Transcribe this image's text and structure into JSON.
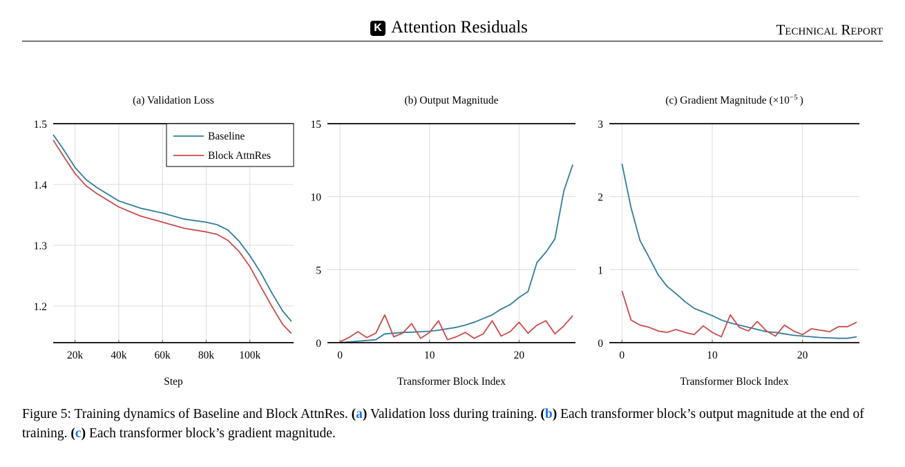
{
  "header": {
    "logo_letter": "K",
    "title": "Attention Residuals",
    "right": "Technical Report"
  },
  "colors": {
    "baseline": "#2e7c9c",
    "block_attnres": "#c94a4a"
  },
  "caption": {
    "prefix": "Figure 5: Training dynamics of Baseline and Block AttnRes. ",
    "a_ref": "a",
    "a_text": " Validation loss during training. ",
    "b_ref": "b",
    "b_text": " Each transformer block’s output magnitude at the end of training. ",
    "c_ref": "c",
    "c_text": " Each transformer block’s gradient magnitude."
  },
  "chart_data": [
    {
      "type": "line",
      "title": "(a) Validation Loss",
      "xlabel": "Step",
      "ylabel": "",
      "xlim": [
        10000,
        120000
      ],
      "ylim": [
        1.14,
        1.5
      ],
      "xticks": [
        20000,
        40000,
        60000,
        80000,
        100000
      ],
      "xtick_labels": [
        "20k",
        "40k",
        "60k",
        "80k",
        "100k"
      ],
      "yticks": [
        1.2,
        1.3,
        1.4,
        1.5
      ],
      "ytick_labels": [
        "1.2",
        "1.3",
        "1.4",
        "1.5"
      ],
      "grid": true,
      "legend": "top-right",
      "x": [
        10000,
        15000,
        20000,
        25000,
        30000,
        40000,
        50000,
        60000,
        70000,
        80000,
        85000,
        90000,
        95000,
        100000,
        105000,
        110000,
        115000,
        119000
      ],
      "series": [
        {
          "name": "Baseline",
          "values": [
            1.482,
            1.456,
            1.428,
            1.408,
            1.395,
            1.373,
            1.361,
            1.353,
            1.343,
            1.338,
            1.334,
            1.325,
            1.307,
            1.283,
            1.255,
            1.222,
            1.192,
            1.175
          ]
        },
        {
          "name": "Block AttnRes",
          "values": [
            1.473,
            1.445,
            1.418,
            1.398,
            1.385,
            1.363,
            1.348,
            1.338,
            1.328,
            1.322,
            1.318,
            1.308,
            1.29,
            1.265,
            1.232,
            1.2,
            1.17,
            1.155
          ]
        }
      ]
    },
    {
      "type": "line",
      "title": "(b) Output Magnitude",
      "xlabel": "Transformer Block Index",
      "ylabel": "",
      "xlim": [
        -1.4,
        26.3
      ],
      "ylim": [
        0,
        15
      ],
      "xticks": [
        0,
        10,
        20
      ],
      "xtick_labels": [
        "0",
        "10",
        "20"
      ],
      "yticks": [
        0,
        5,
        10,
        15
      ],
      "ytick_labels": [
        "0",
        "5",
        "10",
        "15"
      ],
      "grid": true,
      "x": [
        0,
        1,
        2,
        3,
        4,
        5,
        6,
        7,
        8,
        9,
        10,
        11,
        12,
        13,
        14,
        15,
        16,
        17,
        18,
        19,
        20,
        21,
        22,
        23,
        24,
        25,
        26
      ],
      "series": [
        {
          "name": "Baseline",
          "values": [
            0.0,
            0.05,
            0.1,
            0.15,
            0.2,
            0.6,
            0.65,
            0.7,
            0.72,
            0.75,
            0.78,
            0.85,
            0.95,
            1.05,
            1.2,
            1.4,
            1.65,
            1.9,
            2.3,
            2.6,
            3.1,
            3.5,
            5.5,
            6.2,
            7.1,
            10.4,
            12.2
          ]
        },
        {
          "name": "Block AttnRes",
          "values": [
            0.05,
            0.35,
            0.75,
            0.35,
            0.65,
            1.9,
            0.4,
            0.65,
            1.3,
            0.3,
            0.7,
            1.5,
            0.2,
            0.4,
            0.7,
            0.3,
            0.6,
            1.5,
            0.45,
            0.75,
            1.4,
            0.65,
            1.2,
            1.5,
            0.6,
            1.15,
            1.85
          ]
        }
      ]
    },
    {
      "type": "line",
      "title": "(c) Gradient Magnitude (×10",
      "title_sup": "−5",
      "title_end": ")",
      "xlabel": "Transformer Block Index",
      "ylabel": "",
      "xlim": [
        -1.4,
        26.3
      ],
      "ylim": [
        0,
        3
      ],
      "xticks": [
        0,
        10,
        20
      ],
      "xtick_labels": [
        "0",
        "10",
        "20"
      ],
      "yticks": [
        0,
        1,
        2,
        3
      ],
      "ytick_labels": [
        "0",
        "1",
        "2",
        "3"
      ],
      "grid": true,
      "x": [
        0,
        1,
        2,
        3,
        4,
        5,
        6,
        7,
        8,
        9,
        10,
        11,
        12,
        13,
        14,
        15,
        16,
        17,
        18,
        19,
        20,
        21,
        22,
        23,
        24,
        25,
        26
      ],
      "series": [
        {
          "name": "Baseline",
          "values": [
            2.45,
            1.85,
            1.4,
            1.17,
            0.93,
            0.77,
            0.67,
            0.56,
            0.47,
            0.42,
            0.37,
            0.31,
            0.27,
            0.24,
            0.21,
            0.18,
            0.15,
            0.14,
            0.12,
            0.1,
            0.09,
            0.08,
            0.07,
            0.065,
            0.06,
            0.06,
            0.08
          ]
        },
        {
          "name": "Block AttnRes",
          "values": [
            0.71,
            0.31,
            0.24,
            0.21,
            0.16,
            0.14,
            0.18,
            0.14,
            0.11,
            0.23,
            0.14,
            0.08,
            0.38,
            0.21,
            0.16,
            0.29,
            0.16,
            0.09,
            0.24,
            0.16,
            0.11,
            0.19,
            0.17,
            0.15,
            0.22,
            0.22,
            0.28
          ]
        }
      ]
    }
  ]
}
